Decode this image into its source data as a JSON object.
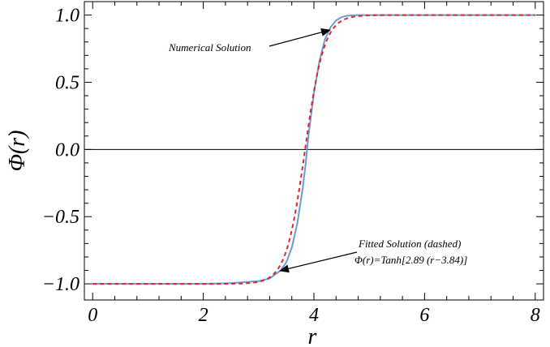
{
  "chart_data": {
    "type": "line",
    "xlabel": "r",
    "ylabel": "Φ(r)",
    "xlim": [
      -0.15,
      8.15
    ],
    "ylim": [
      -1.12,
      1.1
    ],
    "x_ticks": [
      0,
      2,
      4,
      6,
      8
    ],
    "x_tick_labels": [
      "0",
      "2",
      "4",
      "6",
      "8"
    ],
    "y_ticks": [
      1.0,
      0.5,
      0.0,
      -0.5,
      -1.0
    ],
    "y_tick_labels": [
      "1.0",
      "0.5",
      "0.0",
      "−0.5",
      "−1.0"
    ],
    "grid": false,
    "zero_line": true,
    "series": [
      {
        "name": "Numerical Solution",
        "color": "#6a9bd1",
        "style": "solid",
        "x": [
          0,
          1,
          2,
          2.5,
          3,
          3.2,
          3.4,
          3.5,
          3.6,
          3.7,
          3.8,
          3.85,
          3.9,
          4.0,
          4.1,
          4.2,
          4.3,
          4.4,
          4.5,
          4.6,
          4.7,
          4.8,
          5,
          6,
          7,
          8
        ],
        "y": [
          -1.0,
          -1.0,
          -1.0,
          -0.995,
          -0.98,
          -0.96,
          -0.9,
          -0.84,
          -0.73,
          -0.55,
          -0.28,
          -0.11,
          0.1,
          0.42,
          0.66,
          0.82,
          0.91,
          0.96,
          0.985,
          0.995,
          0.998,
          1.0,
          1.0,
          1.0,
          1.0,
          1.0
        ]
      },
      {
        "name": "Fitted Solution (dashed)",
        "color": "#e0242c",
        "style": "dashed",
        "function": "tanh",
        "a": 2.89,
        "b": 3.84,
        "x_range": [
          0,
          8
        ]
      }
    ],
    "annotations": [
      {
        "text": "Numerical Solution",
        "points_to": [
          4.4,
          0.97
        ]
      },
      {
        "text": "Fitted Solution (dashed)",
        "points_to": [
          3.4,
          -0.93
        ]
      },
      {
        "text": "Φ(r)=Tanh[2.89 (r−3.84)]",
        "points_to": null
      }
    ]
  }
}
